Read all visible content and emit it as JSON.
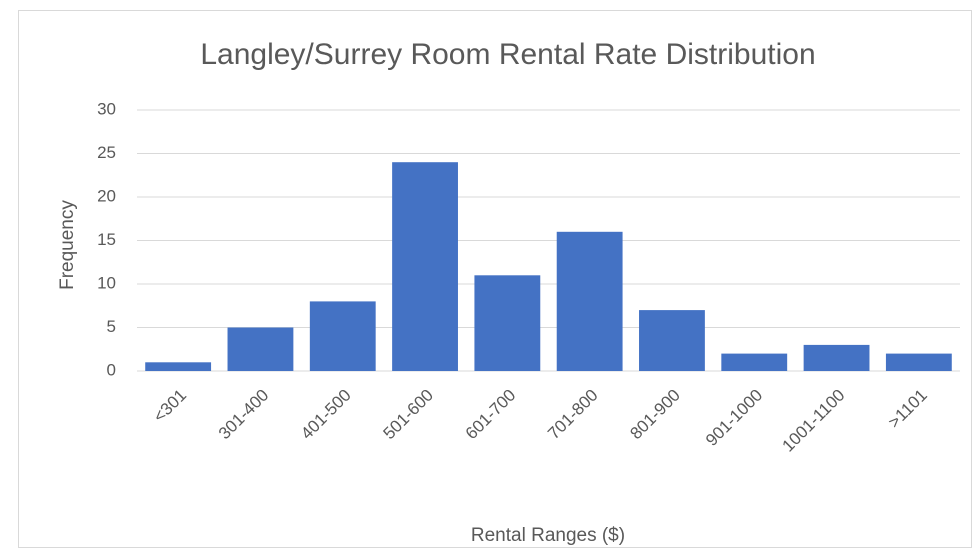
{
  "chart_data": {
    "type": "bar",
    "title": "Langley/Surrey Room Rental Rate Distribution",
    "x_label": "Rental Ranges ($)",
    "y_label": "Frequency",
    "categories": [
      "<301",
      "301-400",
      "401-500",
      "501-600",
      "601-700",
      "701-800",
      "801-900",
      "901-1000",
      "1001-1100",
      ">1101"
    ],
    "values": [
      1,
      5,
      8,
      24,
      11,
      16,
      7,
      2,
      3,
      2
    ],
    "color": "#4472c4",
    "ylim": [
      0,
      30
    ],
    "yticks": [
      0,
      5,
      10,
      15,
      20,
      25,
      30
    ],
    "grid": true
  }
}
